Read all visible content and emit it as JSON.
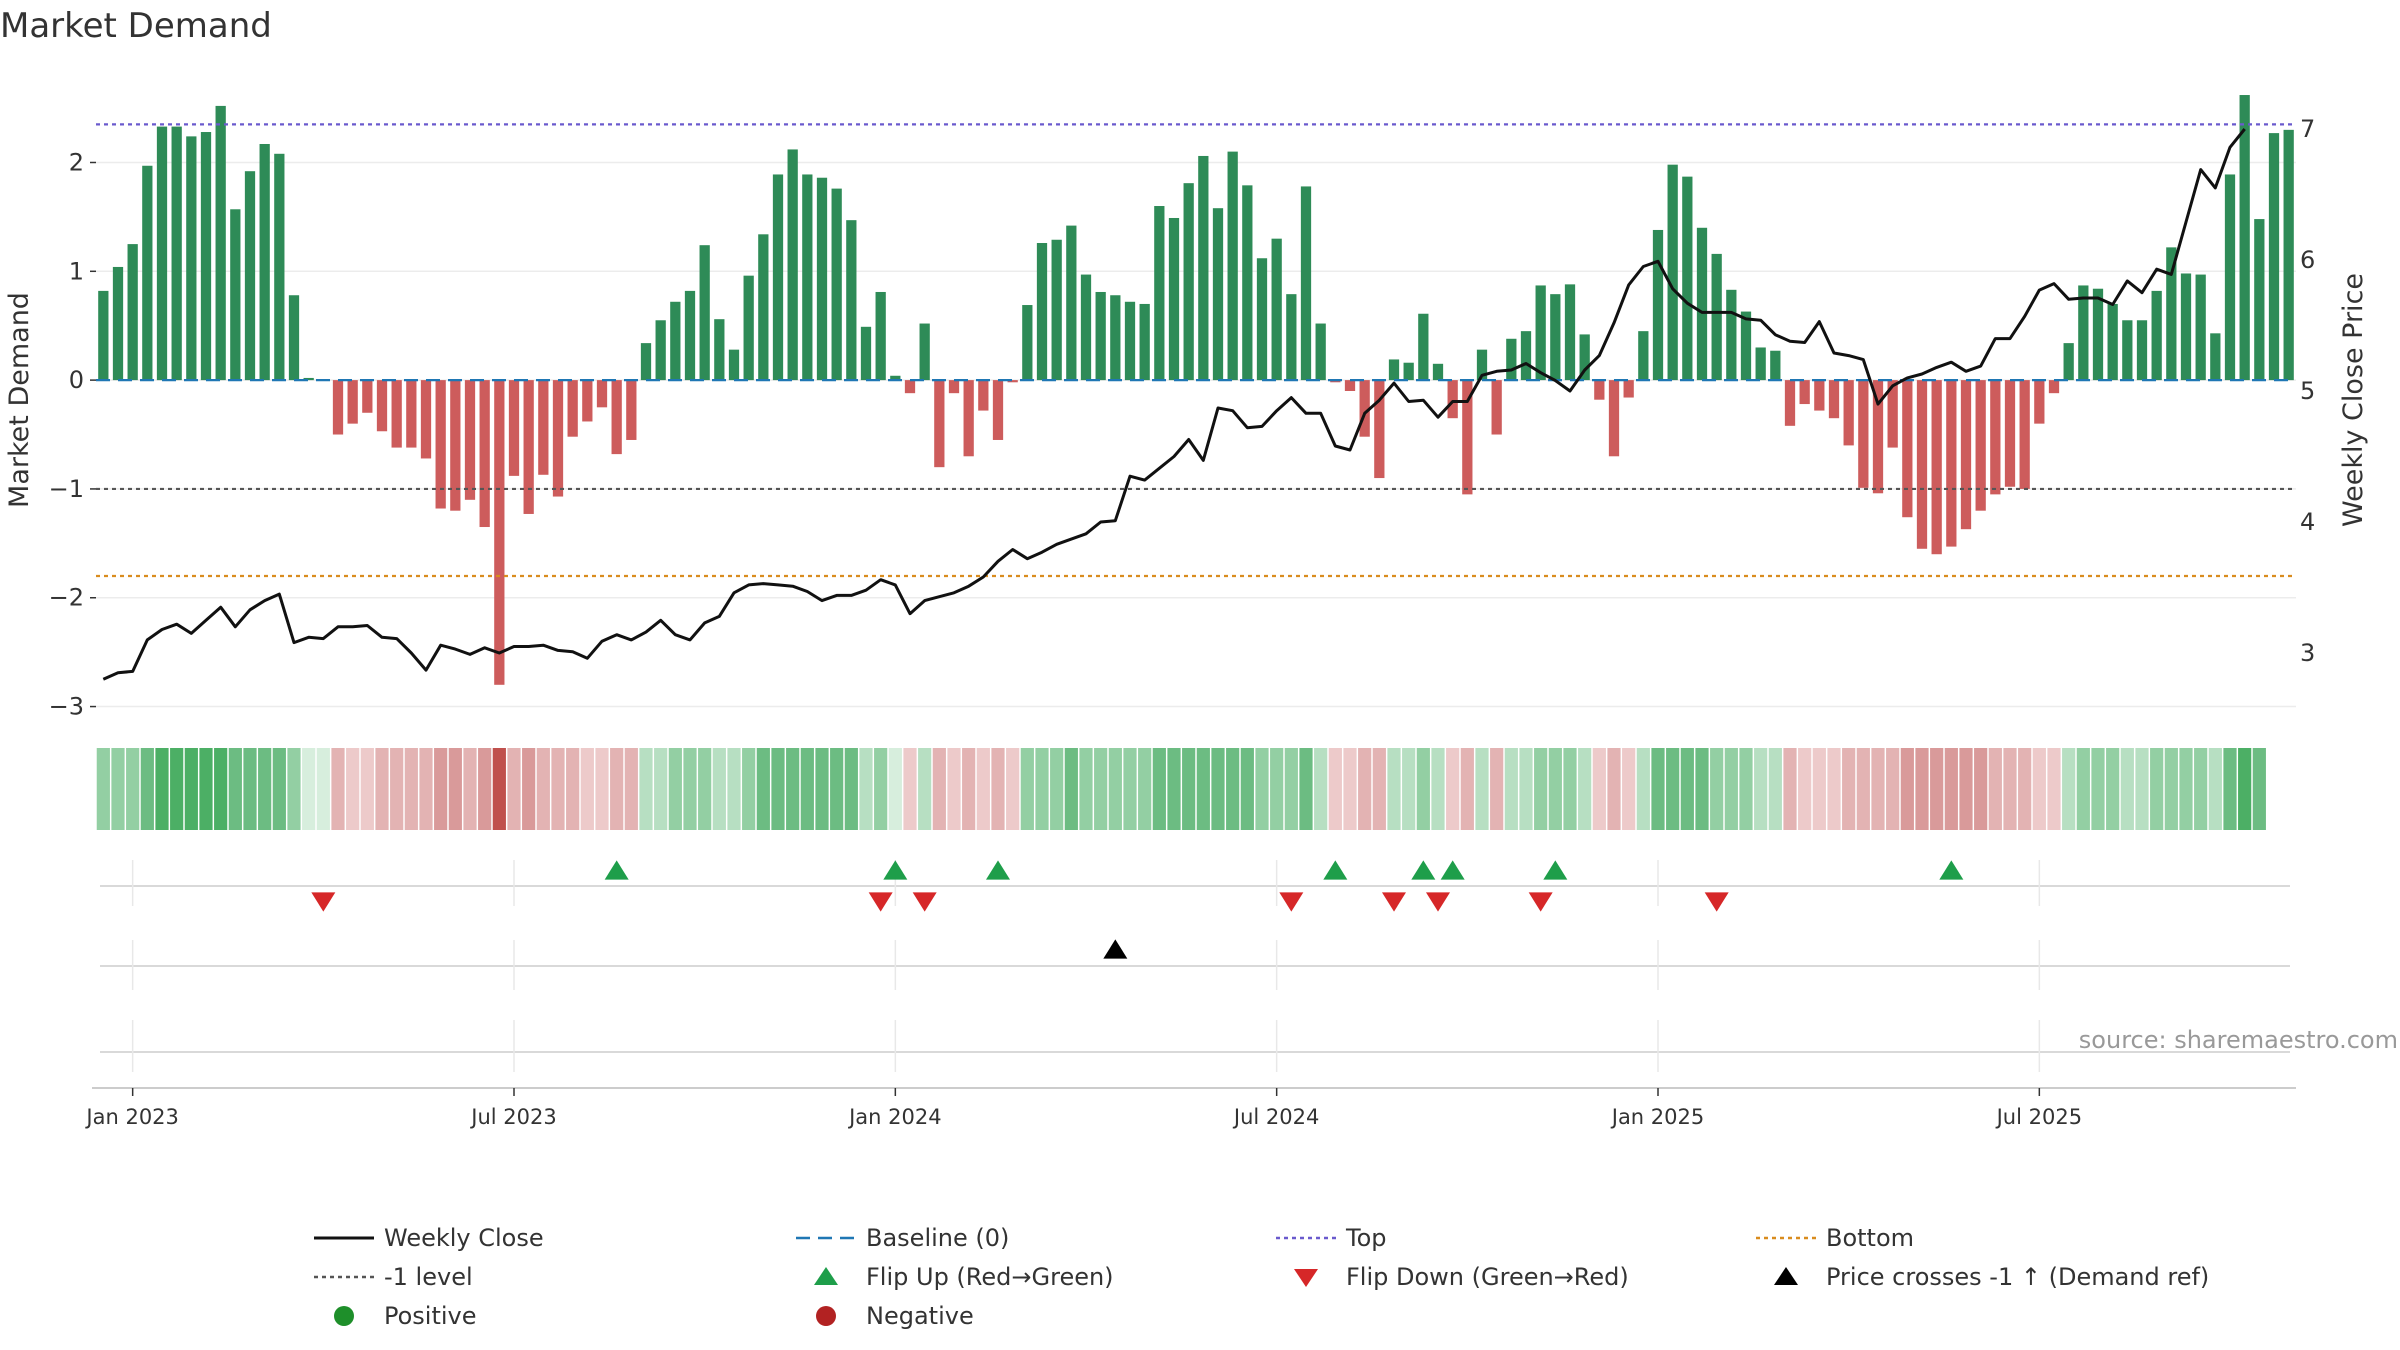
{
  "chart_data": {
    "type": "bar+line",
    "title": "Market Demand",
    "ylabel_left": "Market Demand",
    "ylabel_right": "Weekly Close Price",
    "source": "source: sharemaestro.com",
    "ylim_left": [
      -3.05,
      2.85
    ],
    "ylim_right": [
      2.55,
      7.45
    ],
    "yticks_left": [
      {
        "v": 2,
        "label": "2"
      },
      {
        "v": 1,
        "label": "1"
      },
      {
        "v": 0,
        "label": "0"
      },
      {
        "v": -1,
        "label": "−1"
      },
      {
        "v": -2,
        "label": "−2"
      },
      {
        "v": -3,
        "label": "−3"
      }
    ],
    "yticks_right": [
      {
        "v": 7,
        "label": "7"
      },
      {
        "v": 6,
        "label": "6"
      },
      {
        "v": 5,
        "label": "5"
      },
      {
        "v": 4,
        "label": "4"
      },
      {
        "v": 3,
        "label": "3"
      }
    ],
    "xticks": [
      {
        "week": 2,
        "label": "Jan 2023"
      },
      {
        "week": 28,
        "label": "Jul 2023"
      },
      {
        "week": 54,
        "label": "Jan 2024"
      },
      {
        "week": 80,
        "label": "Jul 2024"
      },
      {
        "week": 106,
        "label": "Jan 2025"
      },
      {
        "week": 132,
        "label": "Jul 2025"
      }
    ],
    "reference_lines": {
      "top": 2.35,
      "bottom": -1.8,
      "minus_one": -1,
      "baseline": 0
    },
    "demand": [
      0.82,
      1.04,
      1.25,
      1.97,
      2.33,
      2.33,
      2.24,
      2.28,
      2.52,
      1.57,
      1.92,
      2.17,
      2.08,
      0.78,
      0.02,
      0.01,
      -0.5,
      -0.4,
      -0.3,
      -0.47,
      -0.62,
      -0.62,
      -0.72,
      -1.18,
      -1.2,
      -1.1,
      -1.35,
      -2.8,
      -0.88,
      -1.23,
      -0.87,
      -1.07,
      -0.52,
      -0.38,
      -0.25,
      -0.68,
      -0.55,
      0.34,
      0.55,
      0.72,
      0.82,
      1.24,
      0.56,
      0.28,
      0.96,
      1.34,
      1.89,
      2.12,
      1.89,
      1.86,
      1.76,
      1.47,
      0.49,
      0.81,
      0.04,
      -0.12,
      0.52,
      -0.8,
      -0.12,
      -0.7,
      -0.28,
      -0.55,
      -0.02,
      0.69,
      1.26,
      1.29,
      1.42,
      0.97,
      0.81,
      0.78,
      0.72,
      0.7,
      1.6,
      1.49,
      1.81,
      2.06,
      1.58,
      2.1,
      1.79,
      1.12,
      1.3,
      0.79,
      1.78,
      0.52,
      -0.02,
      -0.1,
      -0.52,
      -0.9,
      0.19,
      0.16,
      0.61,
      0.15,
      -0.35,
      -1.05,
      0.28,
      -0.5,
      0.38,
      0.45,
      0.87,
      0.79,
      0.88,
      0.42,
      -0.18,
      -0.7,
      -0.16,
      0.45,
      1.38,
      1.98,
      1.87,
      1.4,
      1.16,
      0.83,
      0.63,
      0.3,
      0.27,
      -0.42,
      -0.22,
      -0.28,
      -0.35,
      -0.6,
      -0.99,
      -1.04,
      -0.62,
      -1.26,
      -1.55,
      -1.6,
      -1.53,
      -1.37,
      -1.2,
      -1.05,
      -0.98,
      -1.0,
      -0.4,
      -0.12,
      0.34,
      0.87,
      0.84,
      0.7,
      0.55,
      0.55,
      0.82,
      1.22,
      0.98,
      0.97,
      0.43,
      1.89,
      2.62,
      1.48,
      2.27,
      2.3
    ],
    "weekly_close": [
      2.8,
      2.85,
      2.86,
      3.1,
      3.18,
      3.22,
      3.15,
      3.25,
      3.35,
      3.2,
      3.33,
      3.4,
      3.45,
      3.08,
      3.12,
      3.11,
      3.2,
      3.2,
      3.21,
      3.12,
      3.11,
      3.0,
      2.87,
      3.06,
      3.03,
      2.99,
      3.04,
      3.0,
      3.05,
      3.05,
      3.06,
      3.02,
      3.01,
      2.96,
      3.09,
      3.14,
      3.1,
      3.16,
      3.25,
      3.14,
      3.1,
      3.23,
      3.28,
      3.46,
      3.52,
      3.53,
      3.52,
      3.51,
      3.47,
      3.4,
      3.44,
      3.44,
      3.48,
      3.56,
      3.52,
      3.3,
      3.4,
      3.43,
      3.46,
      3.51,
      3.58,
      3.7,
      3.79,
      3.72,
      3.77,
      3.83,
      3.87,
      3.91,
      4.0,
      4.01,
      4.35,
      4.32,
      4.41,
      4.5,
      4.63,
      4.47,
      4.87,
      4.85,
      4.72,
      4.73,
      4.85,
      4.95,
      4.83,
      4.83,
      4.58,
      4.55,
      4.83,
      4.93,
      5.06,
      4.92,
      4.93,
      4.8,
      4.92,
      4.92,
      5.12,
      5.15,
      5.16,
      5.21,
      5.14,
      5.08,
      5.0,
      5.16,
      5.27,
      5.52,
      5.81,
      5.95,
      5.99,
      5.78,
      5.67,
      5.6,
      5.6,
      5.6,
      5.55,
      5.54,
      5.43,
      5.38,
      5.37,
      5.53,
      5.29,
      5.27,
      5.24,
      4.9,
      5.04,
      5.1,
      5.13,
      5.18,
      5.22,
      5.15,
      5.19,
      5.4,
      5.4,
      5.57,
      5.77,
      5.82,
      5.7,
      5.71,
      5.71,
      5.66,
      5.84,
      5.75,
      5.93,
      5.89,
      6.29,
      6.69,
      6.55,
      6.86,
      7.0
    ],
    "heat": [
      4,
      4,
      5,
      5,
      6,
      6,
      6,
      5,
      6,
      5,
      5,
      4,
      4,
      1,
      2,
      2,
      2,
      2,
      2,
      2,
      2,
      3,
      3,
      3,
      3,
      4,
      6,
      2,
      3,
      3,
      2,
      2,
      2,
      2,
      2,
      2,
      2,
      2,
      3,
      3,
      3,
      3,
      3,
      4,
      4,
      4,
      4,
      5,
      4,
      4,
      3,
      3,
      2,
      2,
      1,
      2,
      1,
      2,
      2,
      2,
      2,
      2,
      2,
      3,
      3,
      3,
      3,
      3,
      3,
      3,
      4,
      4,
      4,
      4,
      4,
      4,
      4,
      3,
      3,
      3,
      2,
      2,
      2,
      2,
      1,
      2,
      1,
      2,
      1,
      2,
      1,
      2,
      1,
      2,
      1,
      2,
      2,
      2,
      2,
      2,
      3,
      3,
      2,
      2,
      1,
      3,
      3,
      4,
      4,
      3,
      3,
      3,
      3,
      2,
      2,
      2,
      2,
      2,
      2,
      2,
      2,
      3,
      3,
      3,
      3,
      3,
      4,
      3,
      3,
      2,
      2,
      2,
      2,
      2,
      2,
      2,
      2,
      3,
      3,
      3,
      3,
      3,
      4,
      4,
      5,
      5,
      5,
      5
    ],
    "flip_up_weeks": [
      35,
      54,
      61,
      84,
      90,
      92,
      99,
      126
    ],
    "flip_down_weeks": [
      15,
      53,
      56,
      81,
      88,
      91,
      98,
      110
    ],
    "price_cross_weeks": [
      69
    ],
    "legend": [
      {
        "key": "weekly-close",
        "label": "Weekly Close"
      },
      {
        "key": "baseline",
        "label": "Baseline (0)"
      },
      {
        "key": "top",
        "label": "Top"
      },
      {
        "key": "bottom",
        "label": "Bottom"
      },
      {
        "key": "minus-one",
        "label": "-1 level"
      },
      {
        "key": "flip-up",
        "label": "Flip Up (Red→Green)"
      },
      {
        "key": "flip-down",
        "label": "Flip Down (Green→Red)"
      },
      {
        "key": "price-cross",
        "label": "Price crosses -1 ↑ (Demand ref)"
      },
      {
        "key": "positive",
        "label": "Positive"
      },
      {
        "key": "negative",
        "label": "Negative"
      }
    ],
    "colors": {
      "positive": "#2e8b57",
      "negative": "#cd5c5c",
      "top": "#6a5acd",
      "bottom": "#d98c1e",
      "minus_one": "#555555",
      "baseline": "#1f77b4",
      "line": "#111111",
      "flip_up": "#1e9e4a",
      "flip_down": "#d62728",
      "price_cross": "#000000",
      "dot_positive": "#1e8f2a",
      "dot_negative": "#b22222"
    }
  }
}
